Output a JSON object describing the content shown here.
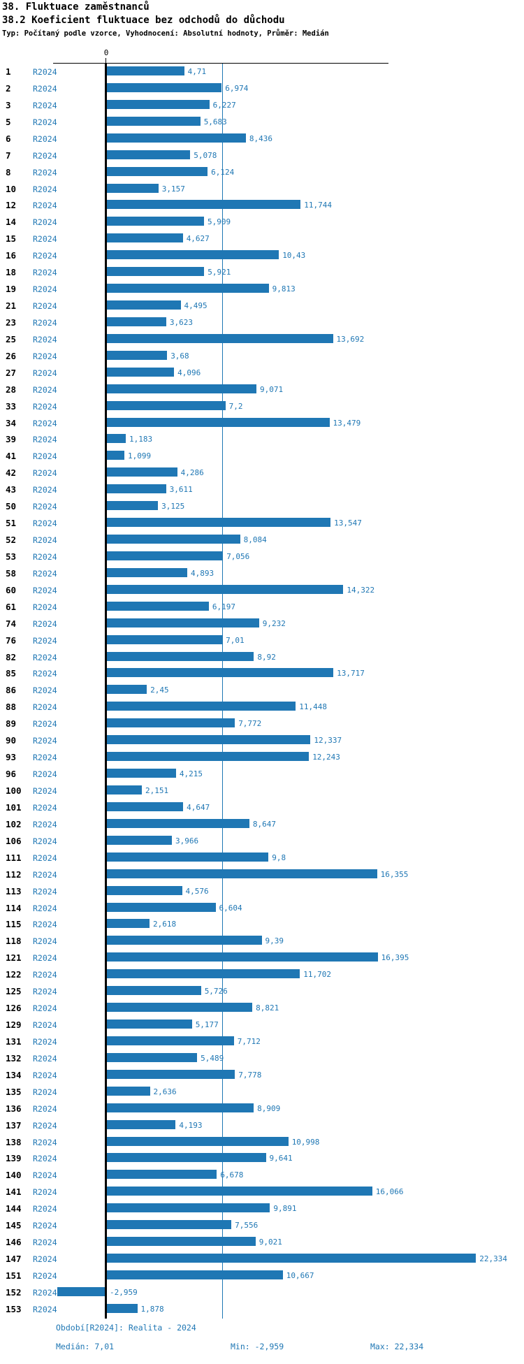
{
  "header": {
    "title": "38. Fluktuace zaměstnanců",
    "subtitle": "38.2 Koeficient fluktuace bez odchodů do důchodu",
    "meta": "Typ: Počítaný podle vzorce, Vyhodnocení: Absolutní hodnoty, Průměr: Medián"
  },
  "colors": {
    "bar": "#1f77b4",
    "value_label": "#1f77b4",
    "period_label": "#1f77b4",
    "median_line": "#1f77b4",
    "axis": "#000000"
  },
  "footer": {
    "period_line": "Období[R2024]: Realita - 2024",
    "median_label": "Medián: 7,01",
    "min_label": "Min: -2,959",
    "max_label": "Max: 22,334"
  },
  "chart_data": {
    "type": "bar",
    "orientation": "horizontal",
    "title": "38. Fluktuace zaměstnanců",
    "subtitle": "38.2 Koeficient fluktuace bez odchodů do důchodu",
    "series_label": "R2024",
    "xlabel": "",
    "ylabel": "",
    "axis": {
      "zero_label": "0",
      "grid": false,
      "median": 7.01,
      "min": -2.959,
      "max": 22.334,
      "xlim": [
        -4.3,
        25.2
      ]
    },
    "rows": [
      {
        "id": "1",
        "period": "R2024",
        "value": 4.71,
        "label": "4,71"
      },
      {
        "id": "2",
        "period": "R2024",
        "value": 6.974,
        "label": "6,974"
      },
      {
        "id": "3",
        "period": "R2024",
        "value": 6.227,
        "label": "6,227"
      },
      {
        "id": "5",
        "period": "R2024",
        "value": 5.683,
        "label": "5,683"
      },
      {
        "id": "6",
        "period": "R2024",
        "value": 8.436,
        "label": "8,436"
      },
      {
        "id": "7",
        "period": "R2024",
        "value": 5.078,
        "label": "5,078"
      },
      {
        "id": "8",
        "period": "R2024",
        "value": 6.124,
        "label": "6,124"
      },
      {
        "id": "10",
        "period": "R2024",
        "value": 3.157,
        "label": "3,157"
      },
      {
        "id": "12",
        "period": "R2024",
        "value": 11.744,
        "label": "11,744"
      },
      {
        "id": "14",
        "period": "R2024",
        "value": 5.909,
        "label": "5,909"
      },
      {
        "id": "15",
        "period": "R2024",
        "value": 4.627,
        "label": "4,627"
      },
      {
        "id": "16",
        "period": "R2024",
        "value": 10.43,
        "label": "10,43"
      },
      {
        "id": "18",
        "period": "R2024",
        "value": 5.921,
        "label": "5,921"
      },
      {
        "id": "19",
        "period": "R2024",
        "value": 9.813,
        "label": "9,813"
      },
      {
        "id": "21",
        "period": "R2024",
        "value": 4.495,
        "label": "4,495"
      },
      {
        "id": "23",
        "period": "R2024",
        "value": 3.623,
        "label": "3,623"
      },
      {
        "id": "25",
        "period": "R2024",
        "value": 13.692,
        "label": "13,692"
      },
      {
        "id": "26",
        "period": "R2024",
        "value": 3.68,
        "label": "3,68"
      },
      {
        "id": "27",
        "period": "R2024",
        "value": 4.096,
        "label": "4,096"
      },
      {
        "id": "28",
        "period": "R2024",
        "value": 9.071,
        "label": "9,071"
      },
      {
        "id": "33",
        "period": "R2024",
        "value": 7.2,
        "label": "7,2"
      },
      {
        "id": "34",
        "period": "R2024",
        "value": 13.479,
        "label": "13,479"
      },
      {
        "id": "39",
        "period": "R2024",
        "value": 1.183,
        "label": "1,183"
      },
      {
        "id": "41",
        "period": "R2024",
        "value": 1.099,
        "label": "1,099"
      },
      {
        "id": "42",
        "period": "R2024",
        "value": 4.286,
        "label": "4,286"
      },
      {
        "id": "43",
        "period": "R2024",
        "value": 3.611,
        "label": "3,611"
      },
      {
        "id": "50",
        "period": "R2024",
        "value": 3.125,
        "label": "3,125"
      },
      {
        "id": "51",
        "period": "R2024",
        "value": 13.547,
        "label": "13,547"
      },
      {
        "id": "52",
        "period": "R2024",
        "value": 8.084,
        "label": "8,084"
      },
      {
        "id": "53",
        "period": "R2024",
        "value": 7.056,
        "label": "7,056"
      },
      {
        "id": "58",
        "period": "R2024",
        "value": 4.893,
        "label": "4,893"
      },
      {
        "id": "60",
        "period": "R2024",
        "value": 14.322,
        "label": "14,322"
      },
      {
        "id": "61",
        "period": "R2024",
        "value": 6.197,
        "label": "6,197"
      },
      {
        "id": "74",
        "period": "R2024",
        "value": 9.232,
        "label": "9,232"
      },
      {
        "id": "76",
        "period": "R2024",
        "value": 7.01,
        "label": "7,01"
      },
      {
        "id": "82",
        "period": "R2024",
        "value": 8.92,
        "label": "8,92"
      },
      {
        "id": "85",
        "period": "R2024",
        "value": 13.717,
        "label": "13,717"
      },
      {
        "id": "86",
        "period": "R2024",
        "value": 2.45,
        "label": "2,45"
      },
      {
        "id": "88",
        "period": "R2024",
        "value": 11.448,
        "label": "11,448"
      },
      {
        "id": "89",
        "period": "R2024",
        "value": 7.772,
        "label": "7,772"
      },
      {
        "id": "90",
        "period": "R2024",
        "value": 12.337,
        "label": "12,337"
      },
      {
        "id": "93",
        "period": "R2024",
        "value": 12.243,
        "label": "12,243"
      },
      {
        "id": "96",
        "period": "R2024",
        "value": 4.215,
        "label": "4,215"
      },
      {
        "id": "100",
        "period": "R2024",
        "value": 2.151,
        "label": "2,151"
      },
      {
        "id": "101",
        "period": "R2024",
        "value": 4.647,
        "label": "4,647"
      },
      {
        "id": "102",
        "period": "R2024",
        "value": 8.647,
        "label": "8,647"
      },
      {
        "id": "106",
        "period": "R2024",
        "value": 3.966,
        "label": "3,966"
      },
      {
        "id": "111",
        "period": "R2024",
        "value": 9.8,
        "label": "9,8"
      },
      {
        "id": "112",
        "period": "R2024",
        "value": 16.355,
        "label": "16,355"
      },
      {
        "id": "113",
        "period": "R2024",
        "value": 4.576,
        "label": "4,576"
      },
      {
        "id": "114",
        "period": "R2024",
        "value": 6.604,
        "label": "6,604"
      },
      {
        "id": "115",
        "period": "R2024",
        "value": 2.618,
        "label": "2,618"
      },
      {
        "id": "118",
        "period": "R2024",
        "value": 9.39,
        "label": "9,39"
      },
      {
        "id": "121",
        "period": "R2024",
        "value": 16.395,
        "label": "16,395"
      },
      {
        "id": "122",
        "period": "R2024",
        "value": 11.702,
        "label": "11,702"
      },
      {
        "id": "125",
        "period": "R2024",
        "value": 5.726,
        "label": "5,726"
      },
      {
        "id": "126",
        "period": "R2024",
        "value": 8.821,
        "label": "8,821"
      },
      {
        "id": "129",
        "period": "R2024",
        "value": 5.177,
        "label": "5,177"
      },
      {
        "id": "131",
        "period": "R2024",
        "value": 7.712,
        "label": "7,712"
      },
      {
        "id": "132",
        "period": "R2024",
        "value": 5.489,
        "label": "5,489"
      },
      {
        "id": "134",
        "period": "R2024",
        "value": 7.778,
        "label": "7,778"
      },
      {
        "id": "135",
        "period": "R2024",
        "value": 2.636,
        "label": "2,636"
      },
      {
        "id": "136",
        "period": "R2024",
        "value": 8.909,
        "label": "8,909"
      },
      {
        "id": "137",
        "period": "R2024",
        "value": 4.193,
        "label": "4,193"
      },
      {
        "id": "138",
        "period": "R2024",
        "value": 10.998,
        "label": "10,998"
      },
      {
        "id": "139",
        "period": "R2024",
        "value": 9.641,
        "label": "9,641"
      },
      {
        "id": "140",
        "period": "R2024",
        "value": 6.678,
        "label": "6,678"
      },
      {
        "id": "141",
        "period": "R2024",
        "value": 16.066,
        "label": "16,066"
      },
      {
        "id": "144",
        "period": "R2024",
        "value": 9.891,
        "label": "9,891"
      },
      {
        "id": "145",
        "period": "R2024",
        "value": 7.556,
        "label": "7,556"
      },
      {
        "id": "146",
        "period": "R2024",
        "value": 9.021,
        "label": "9,021"
      },
      {
        "id": "147",
        "period": "R2024",
        "value": 22.334,
        "label": "22,334"
      },
      {
        "id": "151",
        "period": "R2024",
        "value": 10.667,
        "label": "10,667"
      },
      {
        "id": "152",
        "period": "R2024",
        "value": -2.959,
        "label": "-2,959"
      },
      {
        "id": "153",
        "period": "R2024",
        "value": 1.878,
        "label": "1,878"
      }
    ]
  }
}
